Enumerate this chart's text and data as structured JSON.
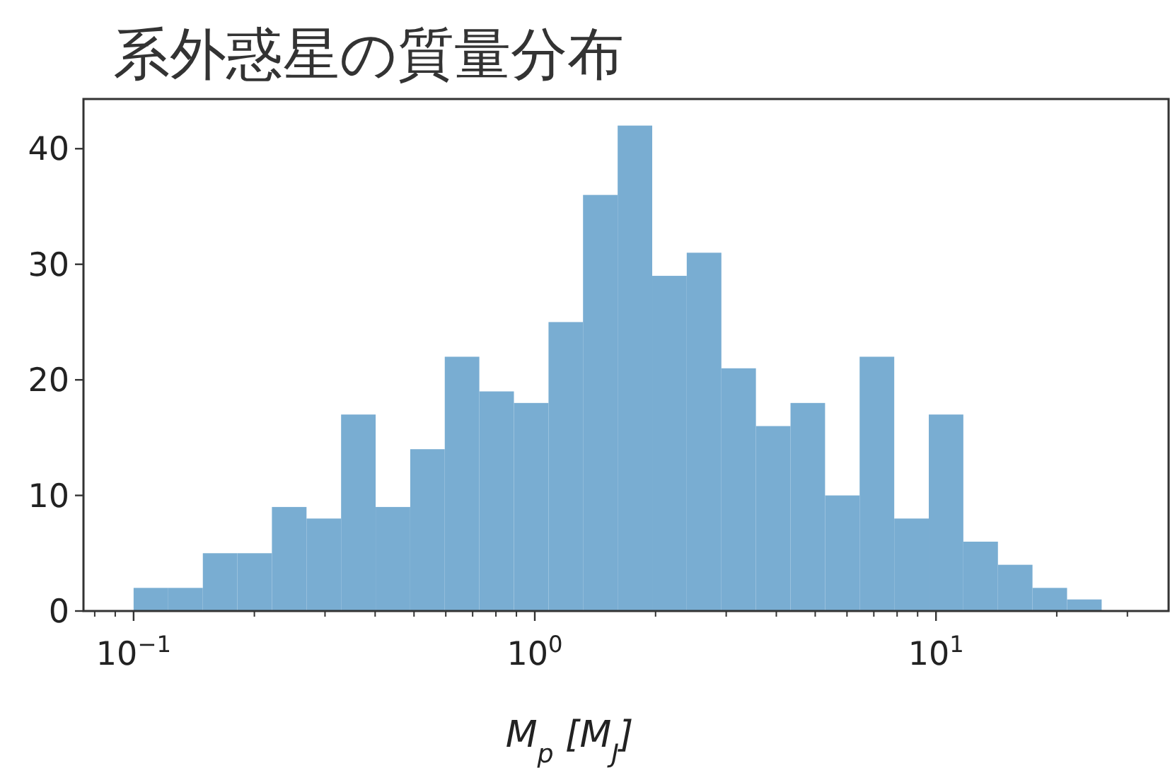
{
  "chart_data": {
    "type": "histogram",
    "title": "系外惑星の質量分布",
    "xlabel": "M$_{p}$ [M$_{J}$]",
    "bins": [
      0.1,
      0.122,
      0.1488,
      0.1814,
      0.2212,
      0.2698,
      0.329,
      0.4012,
      0.4892,
      0.5965,
      0.7274,
      0.8871,
      1.082,
      1.319,
      1.609,
      1.962,
      2.392,
      2.918,
      3.558,
      4.339,
      5.291,
      6.452,
      7.87,
      9.596,
      11.7,
      14.27,
      17.4,
      21.22,
      25.88
    ],
    "values": [
      2,
      2,
      5,
      5,
      9,
      8,
      17,
      9,
      14,
      22,
      19,
      18,
      25,
      36,
      42,
      29,
      31,
      21,
      16,
      18,
      10,
      22,
      8,
      17,
      6,
      4,
      2,
      1
    ],
    "color": "#79add2",
    "log": "x",
    "xlim": [
      0.075,
      38
    ],
    "ylim": [
      0,
      44.3
    ],
    "xticks": [
      {
        "value": 0.1,
        "label": "10$^{−1}$"
      },
      {
        "value": 1,
        "label": "10$^{0}$"
      },
      {
        "value": 10,
        "label": "10$^{1}$"
      }
    ],
    "yticks": [
      0,
      10,
      20,
      30,
      40
    ]
  }
}
